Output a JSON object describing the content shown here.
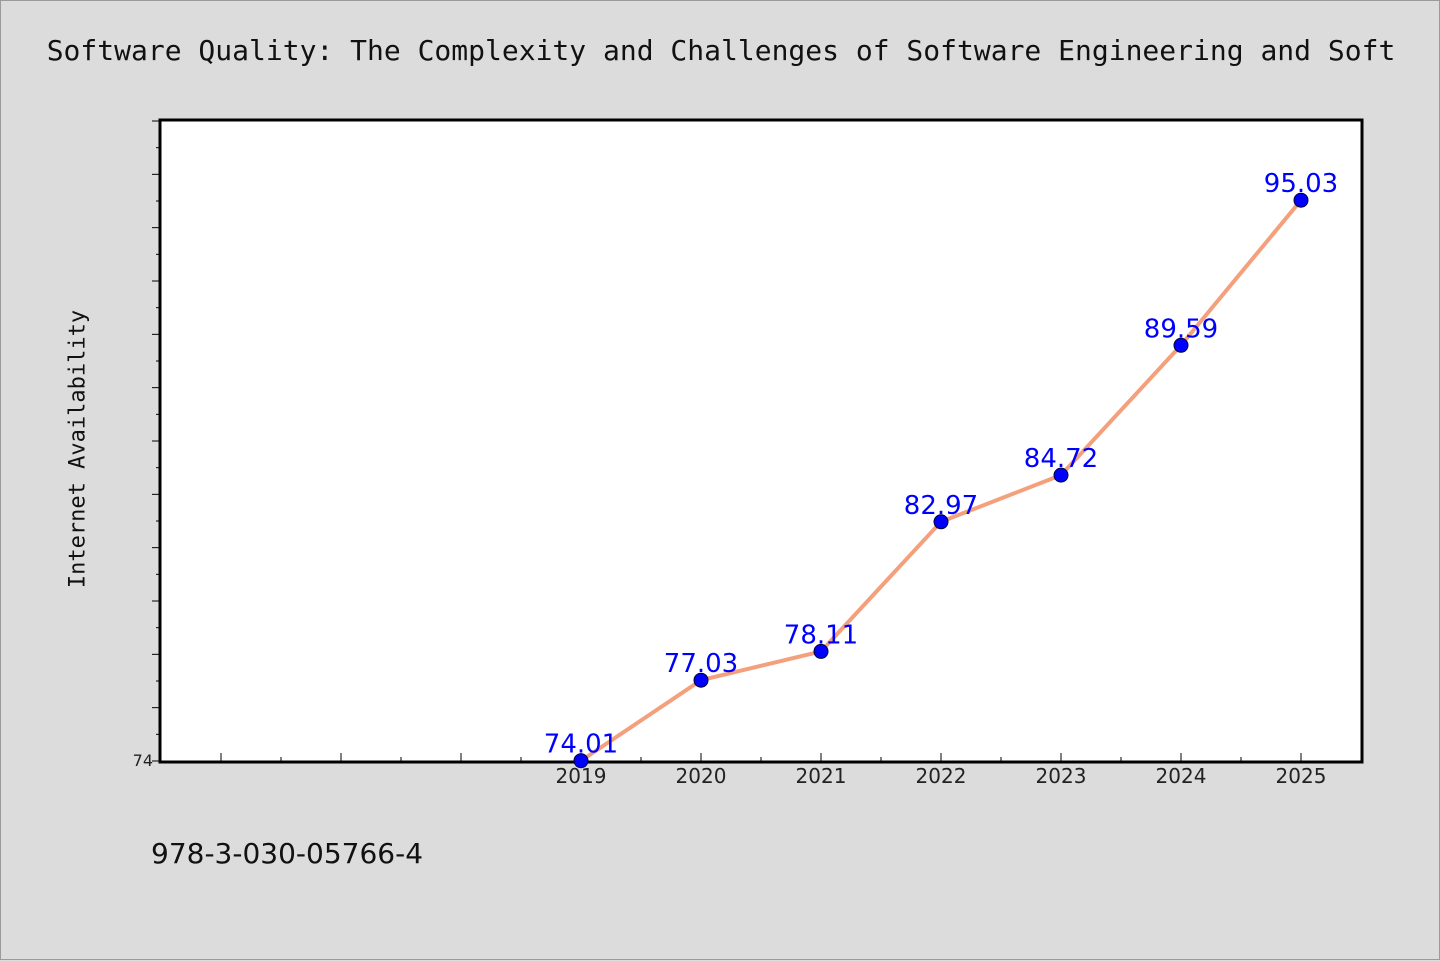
{
  "title": "Software Quality: The Complexity and Challenges of Software Engineering and Soft",
  "footer_text": "978-3-030-05766-4",
  "colors": {
    "background": "#dcdcdc",
    "plot_background": "#ffffff",
    "line": "#f4a07c",
    "marker": "#0000ff",
    "data_label": "#0000ff"
  },
  "chart_data": {
    "type": "line",
    "title": "Software Quality: The Complexity and Challenges of Software Engineering and Soft",
    "xlabel": "",
    "ylabel": "Internet Availability",
    "x": [
      2019,
      2020,
      2021,
      2022,
      2023,
      2024,
      2025
    ],
    "y_tick_labels": [
      "74"
    ],
    "xlim": [
      2015.5,
      2025.5
    ],
    "ylim": [
      74,
      98
    ],
    "grid": false,
    "series": [
      {
        "values": [
          74.01,
          77.03,
          78.11,
          82.97,
          84.72,
          89.59,
          95.03
        ],
        "labels": [
          "74.01",
          "77.03",
          "78.11",
          "82.97",
          "84.72",
          "89.59",
          "95.03"
        ]
      }
    ]
  }
}
